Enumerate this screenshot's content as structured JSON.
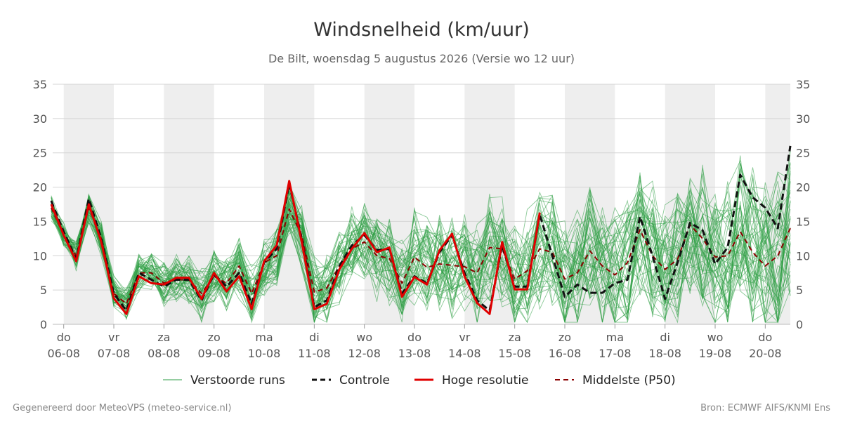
{
  "chart_data": {
    "type": "line",
    "title": "Windsnelheid (km/uur)",
    "subtitle": "De Bilt, woensdag  5 augustus 2026 (Versie wo 12 uur)",
    "ylim": [
      0,
      35
    ],
    "yticks": [
      0,
      5,
      10,
      15,
      20,
      25,
      30,
      35
    ],
    "x_unit": "days since forecast start (06-08 00h = 0)",
    "xlim": [
      -0.22,
      14.5
    ],
    "x_ticks": [
      {
        "day": "do",
        "date": "06-08"
      },
      {
        "day": "vr",
        "date": "07-08"
      },
      {
        "day": "za",
        "date": "08-08"
      },
      {
        "day": "zo",
        "date": "09-08"
      },
      {
        "day": "ma",
        "date": "10-08"
      },
      {
        "day": "di",
        "date": "11-08"
      },
      {
        "day": "wo",
        "date": "12-08"
      },
      {
        "day": "do",
        "date": "13-08"
      },
      {
        "day": "vr",
        "date": "14-08"
      },
      {
        "day": "za",
        "date": "15-08"
      },
      {
        "day": "zo",
        "date": "16-08"
      },
      {
        "day": "ma",
        "date": "17-08"
      },
      {
        "day": "di",
        "date": "18-08"
      },
      {
        "day": "wo",
        "date": "19-08"
      },
      {
        "day": "do",
        "date": "20-08"
      }
    ],
    "grid": true,
    "legend_position": "bottom",
    "legend": [
      {
        "key": "ensemble",
        "label": "Verstoorde runs",
        "color": "#2e9e44",
        "style": "thin"
      },
      {
        "key": "control",
        "label": "Controle",
        "color": "#111111",
        "style": "dashed"
      },
      {
        "key": "hires",
        "label": "Hoge resolutie",
        "color": "#e00000",
        "style": "solid"
      },
      {
        "key": "median",
        "label": "Middelste (P50)",
        "color": "#8b0000",
        "style": "dashed"
      }
    ],
    "series": [
      {
        "name": "Hoge resolutie",
        "key": "hires",
        "color": "#e00000",
        "points": [
          [
            -0.25,
            17.5
          ],
          [
            0,
            13
          ],
          [
            0.25,
            9.2
          ],
          [
            0.5,
            17.5
          ],
          [
            0.75,
            12
          ],
          [
            1,
            3.8
          ],
          [
            1.25,
            1.5
          ],
          [
            1.5,
            7
          ],
          [
            1.75,
            6
          ],
          [
            2,
            5.8
          ],
          [
            2.25,
            6.8
          ],
          [
            2.5,
            6.8
          ],
          [
            2.75,
            3.7
          ],
          [
            3,
            7.5
          ],
          [
            3.25,
            4.8
          ],
          [
            3.5,
            7
          ],
          [
            3.75,
            2.2
          ],
          [
            4,
            9.2
          ],
          [
            4.25,
            11.5
          ],
          [
            4.5,
            20.9
          ],
          [
            4.75,
            12
          ],
          [
            5,
            2.2
          ],
          [
            5.25,
            3
          ],
          [
            5.5,
            8
          ],
          [
            5.75,
            11
          ],
          [
            6,
            13.3
          ],
          [
            6.25,
            10.5
          ],
          [
            6.5,
            11.2
          ],
          [
            6.75,
            4
          ],
          [
            7,
            6.9
          ],
          [
            7.25,
            5.8
          ],
          [
            7.5,
            10.8
          ],
          [
            7.75,
            13.2
          ],
          [
            8,
            7
          ],
          [
            8.25,
            3.1
          ],
          [
            8.5,
            1.5
          ],
          [
            8.75,
            12
          ],
          [
            9,
            5.1
          ],
          [
            9.25,
            5.1
          ],
          [
            9.5,
            16.3
          ]
        ]
      },
      {
        "name": "Controle",
        "key": "control",
        "color": "#111111",
        "points": [
          [
            -0.25,
            18
          ],
          [
            0,
            13.5
          ],
          [
            0.25,
            9.5
          ],
          [
            0.5,
            18.3
          ],
          [
            0.75,
            12.5
          ],
          [
            1,
            4.5
          ],
          [
            1.25,
            2
          ],
          [
            1.5,
            7.5
          ],
          [
            1.75,
            6.5
          ],
          [
            2,
            5.5
          ],
          [
            2.25,
            6.5
          ],
          [
            2.5,
            6.5
          ],
          [
            2.75,
            3.5
          ],
          [
            3,
            7.3
          ],
          [
            3.25,
            5.5
          ],
          [
            3.5,
            7.5
          ],
          [
            3.75,
            3
          ],
          [
            4,
            9
          ],
          [
            4.25,
            11
          ],
          [
            4.5,
            20.5
          ],
          [
            4.75,
            12.5
          ],
          [
            5,
            2.5
          ],
          [
            5.25,
            3.5
          ],
          [
            5.5,
            8.5
          ],
          [
            5.75,
            11.5
          ],
          [
            6,
            13
          ],
          [
            6.25,
            10.8
          ],
          [
            6.5,
            11
          ],
          [
            6.75,
            4.5
          ],
          [
            7,
            7
          ],
          [
            7.25,
            6
          ],
          [
            7.5,
            10.5
          ],
          [
            7.75,
            13
          ],
          [
            8,
            7.5
          ],
          [
            8.25,
            3.5
          ],
          [
            8.5,
            2
          ],
          [
            8.75,
            11.5
          ],
          [
            9,
            5.5
          ],
          [
            9.25,
            5.5
          ],
          [
            9.5,
            16
          ],
          [
            9.75,
            10
          ],
          [
            10,
            4
          ],
          [
            10.25,
            5.8
          ],
          [
            10.5,
            4.6
          ],
          [
            10.75,
            4.6
          ],
          [
            11,
            6
          ],
          [
            11.25,
            6.5
          ],
          [
            11.5,
            15.7
          ],
          [
            11.75,
            10
          ],
          [
            12,
            3.7
          ],
          [
            12.25,
            9
          ],
          [
            12.5,
            14.8
          ],
          [
            12.75,
            13.7
          ],
          [
            13,
            8.8
          ],
          [
            13.25,
            11.2
          ],
          [
            13.5,
            21.8
          ],
          [
            13.75,
            18.5
          ],
          [
            14,
            17
          ],
          [
            14.25,
            14
          ],
          [
            14.5,
            26
          ]
        ]
      },
      {
        "name": "Middelste (P50)",
        "key": "median",
        "color": "#8b0000",
        "points": [
          [
            -0.25,
            17
          ],
          [
            0,
            13
          ],
          [
            0.25,
            10
          ],
          [
            0.5,
            17
          ],
          [
            0.75,
            12.5
          ],
          [
            1,
            4.5
          ],
          [
            1.25,
            3
          ],
          [
            1.5,
            7.5
          ],
          [
            1.75,
            7.5
          ],
          [
            2,
            6
          ],
          [
            2.25,
            6.5
          ],
          [
            2.5,
            6.5
          ],
          [
            2.75,
            4.5
          ],
          [
            3,
            7
          ],
          [
            3.25,
            6
          ],
          [
            3.5,
            8.5
          ],
          [
            3.75,
            4.5
          ],
          [
            4,
            9
          ],
          [
            4.25,
            10
          ],
          [
            4.5,
            16.8
          ],
          [
            4.75,
            13
          ],
          [
            5,
            4.7
          ],
          [
            5.25,
            5.3
          ],
          [
            5.5,
            8.5
          ],
          [
            5.75,
            11
          ],
          [
            6,
            12
          ],
          [
            6.25,
            10
          ],
          [
            6.5,
            9.6
          ],
          [
            6.75,
            6
          ],
          [
            7,
            9.8
          ],
          [
            7.25,
            8.3
          ],
          [
            7.5,
            8.8
          ],
          [
            7.75,
            8.6
          ],
          [
            8,
            8.4
          ],
          [
            8.25,
            7.5
          ],
          [
            8.5,
            11.2
          ],
          [
            8.75,
            11
          ],
          [
            9,
            6.6
          ],
          [
            9.25,
            7.8
          ],
          [
            9.5,
            11
          ],
          [
            9.75,
            10.5
          ],
          [
            10,
            6.6
          ],
          [
            10.25,
            7.5
          ],
          [
            10.5,
            10.7
          ],
          [
            10.75,
            8.5
          ],
          [
            11,
            7.2
          ],
          [
            11.25,
            9
          ],
          [
            11.5,
            13.8
          ],
          [
            11.75,
            10
          ],
          [
            12,
            8
          ],
          [
            12.25,
            9.5
          ],
          [
            12.5,
            14.5
          ],
          [
            12.75,
            12.5
          ],
          [
            13,
            9.8
          ],
          [
            13.25,
            10
          ],
          [
            13.5,
            13.5
          ],
          [
            13.75,
            10.5
          ],
          [
            14,
            8.5
          ],
          [
            14.25,
            10
          ],
          [
            14.5,
            14
          ]
        ]
      }
    ],
    "ensemble_count": 50
  },
  "footer": {
    "left": "Gegenereerd door MeteoVPS (meteo-service.nl)",
    "right": "Bron: ECMWF AIFS/KNMI Ens"
  }
}
